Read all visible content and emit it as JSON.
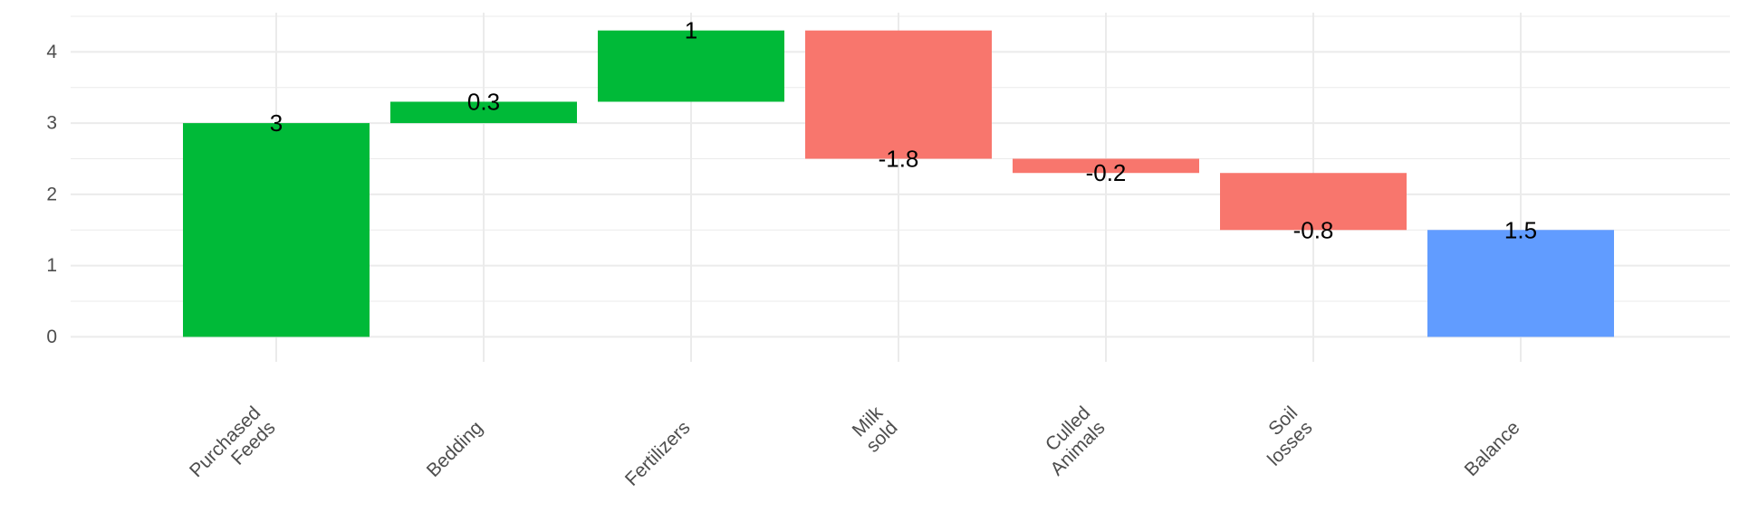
{
  "chart_data": {
    "type": "bar",
    "subtype": "waterfall",
    "title": "",
    "xlabel": "",
    "ylabel": "",
    "categories": [
      [
        "Purchased",
        "Feeds"
      ],
      [
        "Bedding"
      ],
      [
        "Fertilizers"
      ],
      [
        "Milk",
        "sold"
      ],
      [
        "Culled",
        "Animals"
      ],
      [
        "Soil",
        "losses"
      ],
      [
        "Balance"
      ]
    ],
    "values": [
      3,
      0.3,
      1,
      -1.8,
      -0.2,
      -0.8,
      1.5
    ],
    "value_labels": [
      "3",
      "0.3",
      "1",
      "-1.8",
      "-0.2",
      "-0.8",
      "1.5"
    ],
    "bar_start": [
      0,
      3,
      3.3,
      4.3,
      2.5,
      2.3,
      0
    ],
    "bar_end": [
      3,
      3.3,
      4.3,
      2.5,
      2.3,
      1.5,
      1.5
    ],
    "bar_kind": [
      "input",
      "input",
      "input",
      "output",
      "output",
      "output",
      "balance"
    ],
    "colors": {
      "input": "#00BA38",
      "output": "#F8766D",
      "balance": "#619CFF",
      "grid": "#EBEBEB",
      "tick_text": "#4D4D4D",
      "label_text": "#000000"
    },
    "ylim": [
      -0.35,
      4.55
    ],
    "yticks": [
      0,
      1,
      2,
      3,
      4
    ],
    "grid": true,
    "legend": "none"
  }
}
